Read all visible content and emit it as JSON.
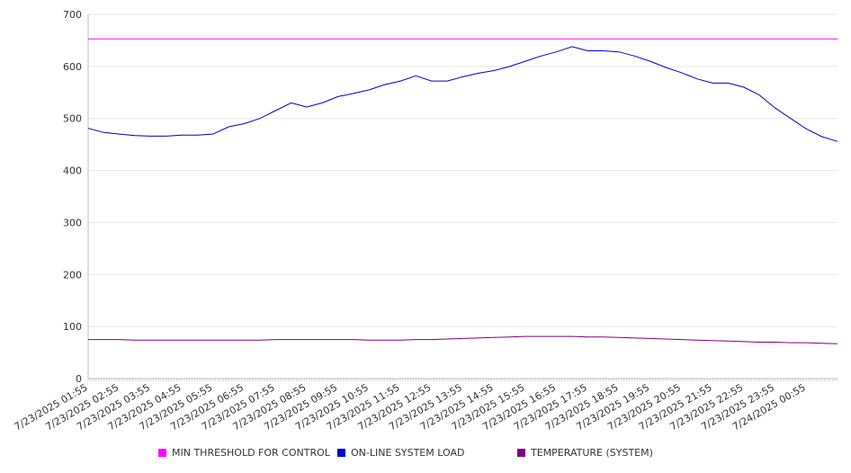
{
  "chart_data": {
    "type": "line",
    "title": "",
    "xlabel": "",
    "ylabel": "",
    "ylim": [
      0,
      700
    ],
    "y_ticks": [
      0,
      100,
      200,
      300,
      400,
      500,
      600,
      700
    ],
    "grid": true,
    "legend_position": "bottom",
    "x_tick_labels": [
      "7/23/2025 01:55",
      "7/23/2025 02:55",
      "7/23/2025 03:55",
      "7/23/2025 04:55",
      "7/23/2025 05:55",
      "7/23/2025 06:55",
      "7/23/2025 07:55",
      "7/23/2025 08:55",
      "7/23/2025 09:55",
      "7/23/2025 10:55",
      "7/23/2025 11:55",
      "7/23/2025 12:55",
      "7/23/2025 13:55",
      "7/23/2025 14:55",
      "7/23/2025 15:55",
      "7/23/2025 16:55",
      "7/23/2025 17:55",
      "7/23/2025 18:55",
      "7/23/2025 19:55",
      "7/23/2025 20:55",
      "7/23/2025 21:55",
      "7/23/2025 22:55",
      "7/23/2025 23:55",
      "7/24/2025 00:55"
    ],
    "x_hours": [
      0,
      0.5,
      1,
      1.5,
      2,
      2.5,
      3,
      3.5,
      4,
      4.5,
      5,
      5.5,
      6,
      6.5,
      7,
      7.5,
      8,
      8.5,
      9,
      9.5,
      10,
      10.5,
      11,
      11.5,
      12,
      12.5,
      13,
      13.5,
      14,
      14.5,
      15,
      15.5,
      16,
      16.5,
      17,
      17.5,
      18,
      18.5,
      19,
      19.5,
      20,
      20.5,
      21,
      21.5,
      22,
      22.5,
      23,
      23.5,
      24
    ],
    "series": [
      {
        "name": "MIN THRESHOLD FOR CONTROL",
        "color": "#ff00ff",
        "values": [
          653,
          653,
          653,
          653,
          653,
          653,
          653,
          653,
          653,
          653,
          653,
          653,
          653,
          653,
          653,
          653,
          653,
          653,
          653,
          653,
          653,
          653,
          653,
          653,
          653,
          653,
          653,
          653,
          653,
          653,
          653,
          653,
          653,
          653,
          653,
          653,
          653,
          653,
          653,
          653,
          653,
          653,
          653,
          653,
          653,
          653,
          653,
          653,
          653
        ]
      },
      {
        "name": "ON-LINE SYSTEM LOAD",
        "color": "#0000cc",
        "values": [
          481,
          473,
          470,
          467,
          466,
          466,
          468,
          468,
          470,
          484,
          490,
          500,
          515,
          530,
          522,
          530,
          542,
          548,
          555,
          565,
          572,
          582,
          572,
          572,
          580,
          587,
          592,
          600,
          610,
          620,
          628,
          638,
          630,
          630,
          628,
          620,
          610,
          598,
          588,
          576,
          568,
          568,
          560,
          545,
          520,
          500,
          480,
          465,
          456
        ]
      },
      {
        "name": "TEMPERATURE (SYSTEM)",
        "color": "#800080",
        "values": [
          75,
          75,
          75,
          74,
          74,
          74,
          74,
          74,
          74,
          74,
          74,
          74,
          75,
          75,
          75,
          75,
          75,
          75,
          74,
          74,
          74,
          75,
          75,
          76,
          77,
          78,
          79,
          80,
          81,
          81,
          81,
          81,
          80,
          80,
          79,
          78,
          77,
          76,
          75,
          74,
          73,
          72,
          71,
          70,
          70,
          69,
          69,
          68,
          67
        ]
      }
    ]
  }
}
